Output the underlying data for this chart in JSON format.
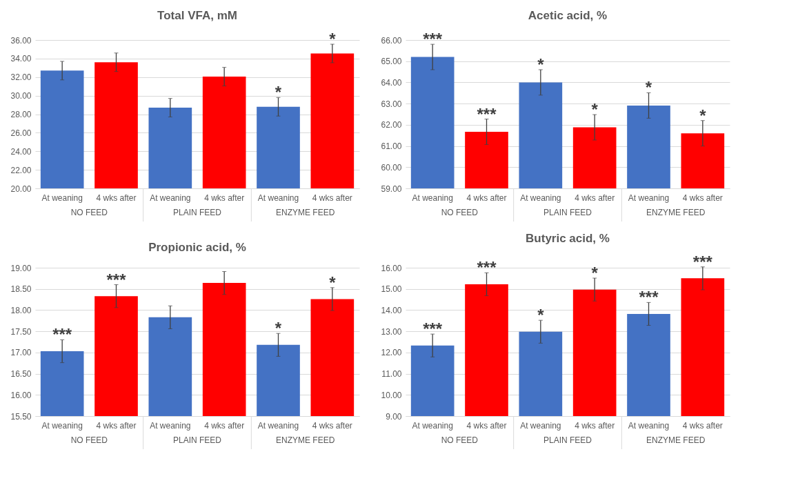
{
  "chart_data": [
    {
      "type": "bar",
      "title": "Total VFA, mM",
      "categories": [
        "At weaning",
        "4 wks after",
        "At weaning",
        "4 wks after",
        "At weaning",
        "4 wks after"
      ],
      "values": [
        32.7,
        33.6,
        28.7,
        32.05,
        28.8,
        34.55
      ],
      "errors": [
        1.0,
        1.0,
        1.0,
        1.0,
        1.0,
        1.0
      ],
      "colors": [
        "#4472c4",
        "#ff0000",
        "#4472c4",
        "#ff0000",
        "#4472c4",
        "#ff0000"
      ],
      "value_labels": [
        null,
        null,
        null,
        null,
        "*",
        "*"
      ],
      "ylim": [
        20,
        36
      ],
      "yticks": [
        {
          "value": 20,
          "label": "20.00"
        },
        {
          "value": 22,
          "label": "22.00"
        },
        {
          "value": 24,
          "label": "24.00"
        },
        {
          "value": 26,
          "label": "26.00"
        },
        {
          "value": 28,
          "label": "28.00"
        },
        {
          "value": 30,
          "label": "30.00"
        },
        {
          "value": 32,
          "label": "32.00"
        },
        {
          "value": 34,
          "label": "34.00"
        },
        {
          "value": 36,
          "label": "36.00"
        }
      ],
      "grid": "y",
      "annotations": [
        "NO FEED",
        "PLAIN FEED",
        "ENZYME FEED"
      ]
    },
    {
      "type": "bar",
      "title": "Acetic acid, %",
      "categories": [
        "At weaning",
        "4 wks after",
        "At weaning",
        "4 wks after",
        "At weaning",
        "4 wks after"
      ],
      "values": [
        65.2,
        61.67,
        64.0,
        61.88,
        62.91,
        61.6
      ],
      "errors": [
        0.6,
        0.6,
        0.6,
        0.6,
        0.6,
        0.6
      ],
      "colors": [
        "#4472c4",
        "#ff0000",
        "#4472c4",
        "#ff0000",
        "#4472c4",
        "#ff0000"
      ],
      "value_labels": [
        "***",
        "***",
        "*",
        "*",
        "*",
        "*"
      ],
      "ylim": [
        59,
        66
      ],
      "yticks": [
        {
          "value": 59,
          "label": "59.00"
        },
        {
          "value": 60,
          "label": "60.00"
        },
        {
          "value": 61,
          "label": "61.00"
        },
        {
          "value": 62,
          "label": "62.00"
        },
        {
          "value": 63,
          "label": "63.00"
        },
        {
          "value": 64,
          "label": "64.00"
        },
        {
          "value": 65,
          "label": "65.00"
        },
        {
          "value": 66,
          "label": "66.00"
        }
      ],
      "grid": "y",
      "annotations": [
        "NO FEED",
        "PLAIN FEED",
        "ENZYME FEED"
      ]
    },
    {
      "type": "bar",
      "title": "Propionic acid, %",
      "categories": [
        "At weaning",
        "4 wks after",
        "At weaning",
        "4 wks after",
        "At weaning",
        "4 wks after"
      ],
      "values": [
        17.03,
        18.33,
        17.83,
        18.64,
        17.18,
        18.26
      ],
      "errors": [
        0.27,
        0.27,
        0.27,
        0.27,
        0.27,
        0.27
      ],
      "colors": [
        "#4472c4",
        "#ff0000",
        "#4472c4",
        "#ff0000",
        "#4472c4",
        "#ff0000"
      ],
      "value_labels": [
        "***",
        "***",
        null,
        null,
        "*",
        "*"
      ],
      "ylim": [
        15.5,
        19
      ],
      "yticks": [
        {
          "value": 15.5,
          "label": "15.50"
        },
        {
          "value": 16,
          "label": "16.00"
        },
        {
          "value": 16.5,
          "label": "16.50"
        },
        {
          "value": 17,
          "label": "17.00"
        },
        {
          "value": 17.5,
          "label": "17.50"
        },
        {
          "value": 18,
          "label": "18.00"
        },
        {
          "value": 18.5,
          "label": "18.50"
        },
        {
          "value": 19,
          "label": "19.00"
        }
      ],
      "grid": "y",
      "annotations": [
        "NO FEED",
        "PLAIN FEED",
        "ENZYME FEED"
      ]
    },
    {
      "type": "bar",
      "title": "Butyric acid, %",
      "categories": [
        "At weaning",
        "4 wks after",
        "At weaning",
        "4 wks after",
        "At weaning",
        "4 wks after"
      ],
      "values": [
        12.33,
        15.22,
        12.98,
        14.97,
        13.82,
        15.5
      ],
      "errors": [
        0.54,
        0.54,
        0.54,
        0.54,
        0.54,
        0.54
      ],
      "colors": [
        "#4472c4",
        "#ff0000",
        "#4472c4",
        "#ff0000",
        "#4472c4",
        "#ff0000"
      ],
      "value_labels": [
        "***",
        "***",
        "*",
        "*",
        "***",
        "***"
      ],
      "ylim": [
        9,
        16
      ],
      "yticks": [
        {
          "value": 9,
          "label": "9.00"
        },
        {
          "value": 10,
          "label": "10.00"
        },
        {
          "value": 11,
          "label": "11.00"
        },
        {
          "value": 12,
          "label": "12.00"
        },
        {
          "value": 13,
          "label": "13.00"
        },
        {
          "value": 14,
          "label": "14.00"
        },
        {
          "value": 15,
          "label": "15.00"
        },
        {
          "value": 16,
          "label": "16.00"
        }
      ],
      "grid": "y",
      "annotations": [
        "NO FEED",
        "PLAIN FEED",
        "ENZYME FEED"
      ]
    }
  ]
}
